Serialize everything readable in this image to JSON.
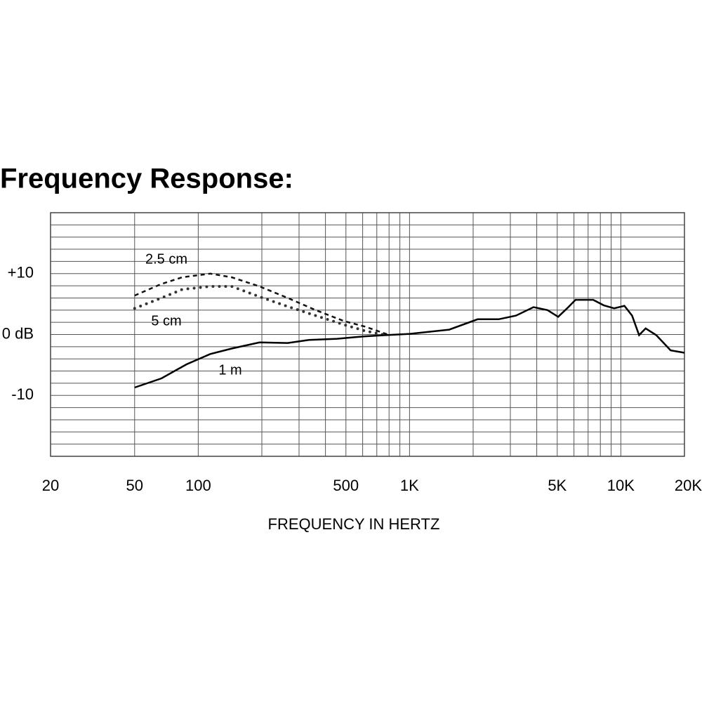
{
  "chart_data": {
    "type": "line",
    "title": "Frequency Response:",
    "x_label": "FREQUENCY IN HERTZ",
    "x_scale": "log",
    "xlim": [
      20,
      20000
    ],
    "ylim": [
      -20,
      20
    ],
    "xticks": [
      20,
      50,
      100,
      500,
      {
        "value": 1000,
        "label": "1K"
      },
      {
        "value": 5000,
        "label": "5K"
      },
      {
        "value": 10000,
        "label": "10K"
      },
      {
        "value": 20000,
        "label": "20K"
      }
    ],
    "yticks": [
      {
        "value": 10,
        "label": "+10"
      },
      {
        "value": 0,
        "label": "0 dB"
      },
      {
        "value": -10,
        "label": "-10"
      }
    ],
    "x_grid": [
      20,
      50,
      100,
      200,
      300,
      400,
      500,
      600,
      700,
      800,
      900,
      1000,
      2000,
      3000,
      4000,
      5000,
      6000,
      7000,
      8000,
      9000,
      10000,
      20000
    ],
    "y_grid": [
      -20,
      -18,
      -16,
      -14,
      -12,
      -10,
      -8,
      -6,
      -4,
      -2,
      0,
      2,
      4,
      6,
      8,
      10,
      12,
      14,
      16,
      18,
      20
    ],
    "series": [
      {
        "name": "2.5 cm",
        "color": "#111111",
        "style": "dashed",
        "x": [
          50,
          67,
          84,
          114,
          144,
          195,
          265,
          360,
          490,
          615,
          805
        ],
        "values": [
          6.4,
          8.3,
          9.4,
          10.0,
          9.4,
          7.9,
          6.0,
          4.0,
          2.2,
          1.3,
          -0.1
        ]
      },
      {
        "name": "5 cm",
        "color": "#333333",
        "style": "dotted",
        "x": [
          50,
          67,
          84,
          114,
          144,
          195,
          265,
          360,
          490,
          615,
          774
        ],
        "values": [
          4.3,
          6.0,
          7.4,
          7.9,
          7.9,
          6.2,
          4.6,
          3.1,
          1.6,
          0.6,
          -0.1
        ]
      },
      {
        "name": "1 m",
        "color": "#000000",
        "style": "solid",
        "x": [
          50,
          67,
          88,
          114,
          144,
          195,
          265,
          334,
          453,
          615,
          774,
          1000,
          1540,
          2100,
          2640,
          3190,
          3860,
          4500,
          5050,
          5570,
          6100,
          7400,
          8300,
          9300,
          10400,
          11300,
          12200,
          13100,
          14700,
          17200,
          20000
        ],
        "values": [
          -8.7,
          -7.2,
          -4.9,
          -3.2,
          -2.3,
          -1.3,
          -1.4,
          -0.9,
          -0.7,
          -0.3,
          -0.1,
          0.1,
          0.8,
          2.5,
          2.5,
          3.1,
          4.5,
          4.0,
          2.9,
          4.3,
          5.7,
          5.7,
          4.8,
          4.3,
          4.7,
          3.1,
          -0.1,
          1.0,
          -0.1,
          -2.6,
          -3.0
        ]
      }
    ]
  }
}
